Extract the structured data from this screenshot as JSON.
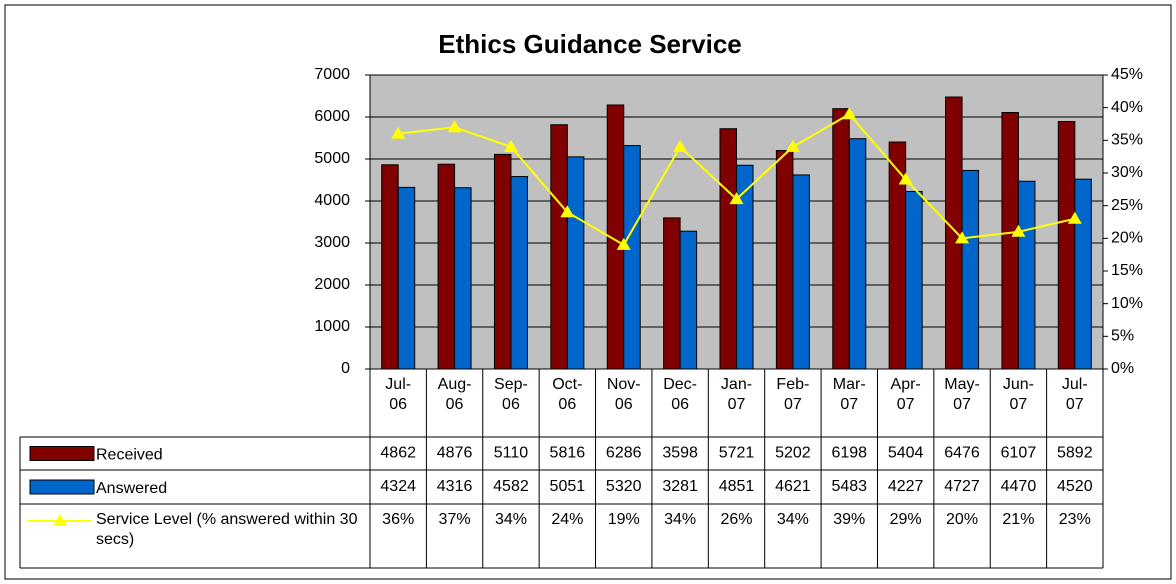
{
  "chart_data": {
    "type": "bar",
    "title": "Ethics Guidance Service",
    "categories": [
      "Jul-\n06",
      "Aug-\n06",
      "Sep-\n06",
      "Oct-\n06",
      "Nov-\n06",
      "Dec-\n06",
      "Jan-\n07",
      "Feb-\n07",
      "Mar-\n07",
      "Apr-\n07",
      "May-\n07",
      "Jun-\n07",
      "Jul-\n07"
    ],
    "series": [
      {
        "name": "Received",
        "color": "#800000",
        "values": [
          4862,
          4876,
          5110,
          5816,
          6286,
          3598,
          5721,
          5202,
          6198,
          5404,
          6476,
          6107,
          5892
        ]
      },
      {
        "name": "Answered",
        "color": "#0066cc",
        "values": [
          4324,
          4316,
          4582,
          5051,
          5320,
          3281,
          4851,
          4621,
          5483,
          4227,
          4727,
          4470,
          4520
        ]
      },
      {
        "name": "Service Level (% answered within 30 secs)",
        "color": "#ffff00",
        "type": "line",
        "axis": "y2",
        "values": [
          36,
          37,
          34,
          24,
          19,
          34,
          26,
          34,
          39,
          29,
          20,
          21,
          23
        ],
        "value_labels": [
          "36%",
          "37%",
          "34%",
          "24%",
          "19%",
          "34%",
          "26%",
          "34%",
          "39%",
          "29%",
          "20%",
          "21%",
          "23%"
        ]
      }
    ],
    "ylim": [
      0,
      7000
    ],
    "yticks": [
      0,
      1000,
      2000,
      3000,
      4000,
      5000,
      6000,
      7000
    ],
    "y2lim": [
      0,
      45
    ],
    "y2ticks": [
      {
        "value": 0,
        "label": "0%"
      },
      {
        "value": 5,
        "label": "5%"
      },
      {
        "value": 10,
        "label": "10%"
      },
      {
        "value": 15,
        "label": "15%"
      },
      {
        "value": 20,
        "label": "20%"
      },
      {
        "value": 25,
        "label": "25%"
      },
      {
        "value": 30,
        "label": "30%"
      },
      {
        "value": 35,
        "label": "35%"
      },
      {
        "value": 40,
        "label": "40%"
      },
      {
        "value": 45,
        "label": "45%"
      }
    ],
    "grid": true,
    "plot_background": "#c0c0c0",
    "data_table": true
  }
}
